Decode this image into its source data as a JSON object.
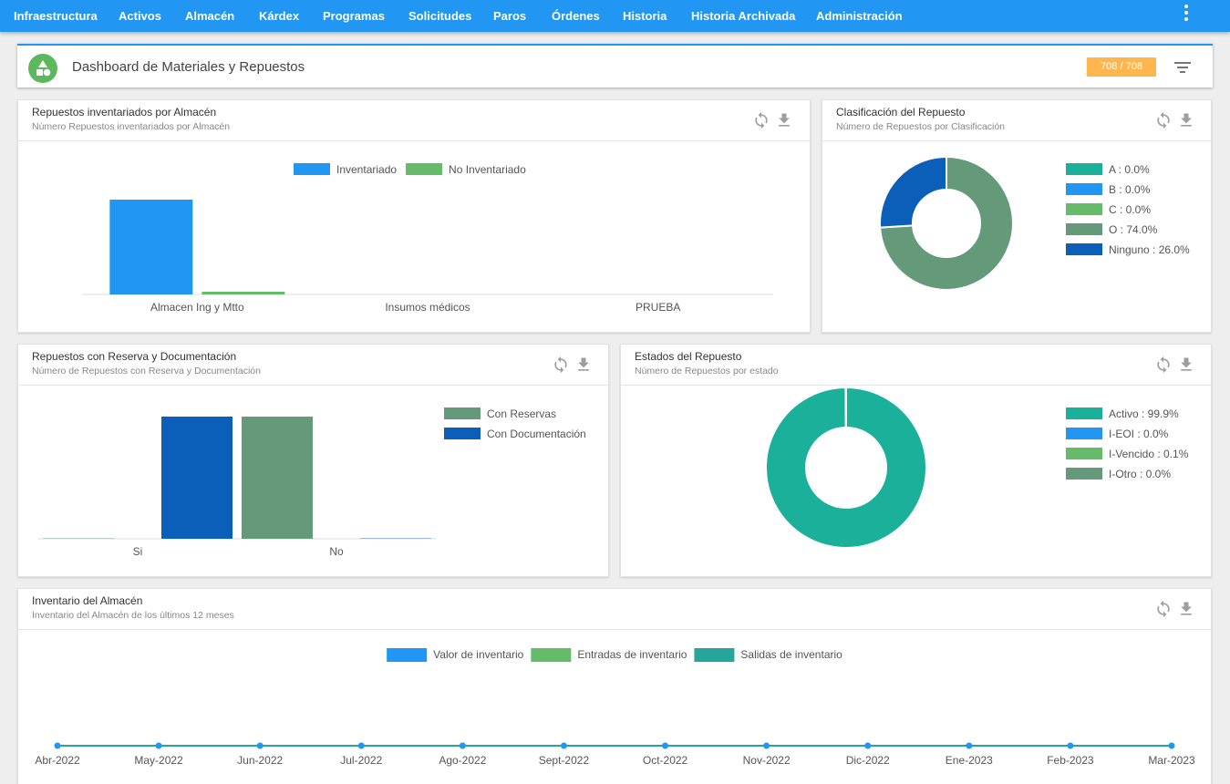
{
  "nav": {
    "items": [
      "Infraestructura",
      "Activos",
      "Almacén",
      "Kárdex",
      "Programas",
      "Solicitudes",
      "Paros",
      "Órdenes",
      "Historia",
      "Historia Archivada",
      "Administración"
    ]
  },
  "header": {
    "title": "Dashboard de Materiales y Repuestos",
    "count": "708 / 708"
  },
  "colors": {
    "nav": "#2196f3",
    "blue": "#2196f3",
    "green": "#66bb6a",
    "teal": "#1ab09a",
    "sage": "#64997a",
    "darkblue": "#0b5fb8",
    "badge": "#ffb74d",
    "icon_gray": "#9e9e9e"
  },
  "icons": {
    "refresh": "refresh-icon",
    "download": "download-icon",
    "filter": "filter-icon",
    "logo": "shapes-logo-icon"
  },
  "cards": {
    "almacen": {
      "title": "Repuestos inventariados por Almacén",
      "subtitle": "Número Repuestos inventariados por Almacén"
    },
    "clasificacion": {
      "title": "Clasificación del Repuesto",
      "subtitle": "Número de Repuestos por Clasificación"
    },
    "reserva": {
      "title": "Repuestos con Reserva y Documentación",
      "subtitle": "Número de Repuestos con Reserva y Documentación"
    },
    "estados": {
      "title": "Estados del Repuesto",
      "subtitle": "Número de Repuestos por estado"
    },
    "inventario": {
      "title": "Inventario del Almacén",
      "subtitle": "Inventario del Almacén de los últimos 12 meses"
    }
  },
  "chart_data": [
    {
      "id": "almacen",
      "type": "bar",
      "categories": [
        "Almacen Ing y Mtto",
        "Insumos médicos",
        "PRUEBA"
      ],
      "series": [
        {
          "name": "Inventariado",
          "color": "#2196f3",
          "values": [
            700,
            0,
            0
          ]
        },
        {
          "name": "No Inventariado",
          "color": "#66bb6a",
          "values": [
            8,
            0,
            0
          ]
        }
      ],
      "legend": "top-center",
      "ylim": [
        0,
        700
      ],
      "grid": false
    },
    {
      "id": "clasificacion",
      "type": "pie",
      "donut": true,
      "slices": [
        {
          "label": "A",
          "value": 0.0,
          "color": "#1ab09a"
        },
        {
          "label": "B",
          "value": 0.0,
          "color": "#2196f3"
        },
        {
          "label": "C",
          "value": 0.0,
          "color": "#66bb6a"
        },
        {
          "label": "O",
          "value": 74.0,
          "color": "#64997a"
        },
        {
          "label": "Ninguno",
          "value": 26.0,
          "color": "#0b5fb8"
        }
      ],
      "legend": "right"
    },
    {
      "id": "reserva",
      "type": "bar",
      "categories": [
        "Si",
        "No"
      ],
      "series": [
        {
          "name": "Con Reservas",
          "color": "#64997a",
          "values": [
            0,
            708
          ]
        },
        {
          "name": "Con Documentación",
          "color": "#0b5fb8",
          "values": [
            708,
            0
          ]
        }
      ],
      "legend": "right",
      "ylim": [
        0,
        708
      ],
      "grid": false
    },
    {
      "id": "estados",
      "type": "pie",
      "donut": true,
      "slices": [
        {
          "label": "Activo",
          "value": 99.9,
          "color": "#1ab09a"
        },
        {
          "label": "I-EOI",
          "value": 0.0,
          "color": "#2196f3"
        },
        {
          "label": "I-Vencido",
          "value": 0.1,
          "color": "#66bb6a"
        },
        {
          "label": "I-Otro",
          "value": 0.0,
          "color": "#64997a"
        }
      ],
      "legend": "right"
    },
    {
      "id": "inventario",
      "type": "line",
      "x": [
        "Abr-2022",
        "May-2022",
        "Jun-2022",
        "Jul-2022",
        "Ago-2022",
        "Sept-2022",
        "Oct-2022",
        "Nov-2022",
        "Dic-2022",
        "Ene-2023",
        "Feb-2023",
        "Mar-2023"
      ],
      "series": [
        {
          "name": "Valor de inventario",
          "color": "#2196f3",
          "values": [
            0,
            0,
            0,
            0,
            0,
            0,
            0,
            0,
            0,
            0,
            0,
            0
          ]
        },
        {
          "name": "Entradas de inventario",
          "color": "#66bb6a",
          "values": [
            0,
            0,
            0,
            0,
            0,
            0,
            0,
            0,
            0,
            0,
            0,
            0
          ]
        },
        {
          "name": "Salidas de inventario",
          "color": "#26a69a",
          "values": [
            0,
            0,
            0,
            0,
            0,
            0,
            0,
            0,
            0,
            0,
            0,
            0
          ]
        }
      ],
      "legend": "top-center",
      "grid": false
    }
  ]
}
